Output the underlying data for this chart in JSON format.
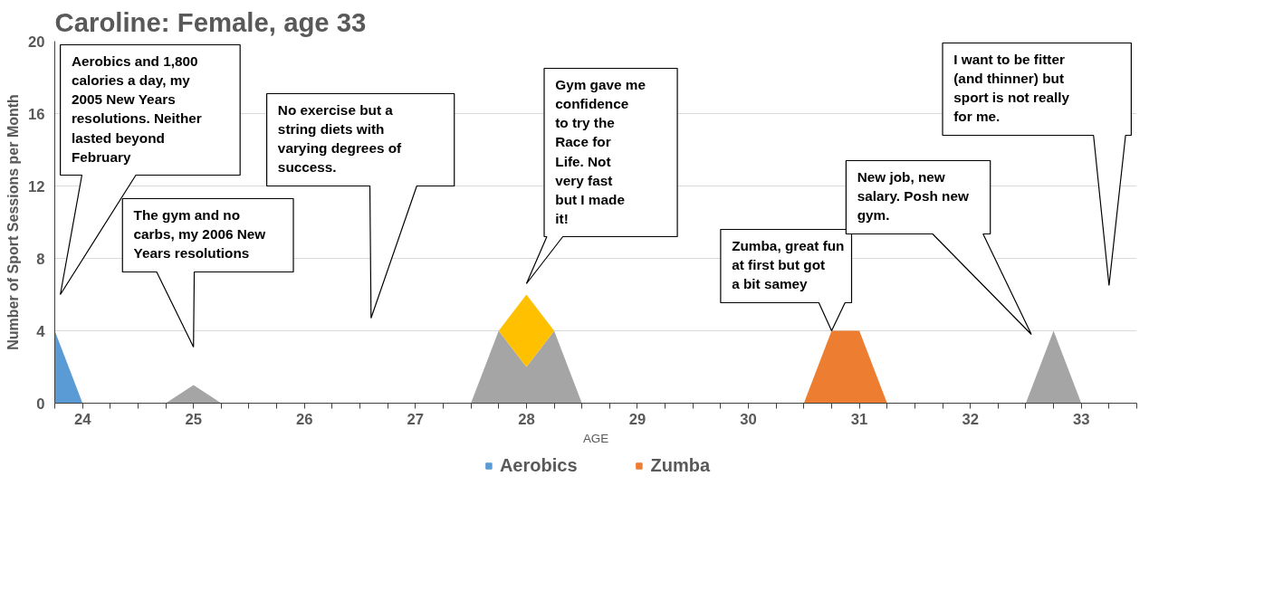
{
  "chart_data": {
    "type": "area",
    "title": "Caroline: Female, age 33",
    "xlabel": "AGE",
    "ylabel": "Number of Sport Sessions per Month",
    "grid": "y",
    "legend": "bottom",
    "xlim": [
      23.75,
      33.5
    ],
    "xticks": [
      {
        "value": 23.75,
        "label": null
      },
      24,
      {
        "value": 24.25,
        "label": null
      },
      {
        "value": 24.5,
        "label": null
      },
      {
        "value": 24.75,
        "label": null
      },
      25,
      {
        "value": 25.25,
        "label": null
      },
      {
        "value": 25.5,
        "label": null
      },
      {
        "value": 25.75,
        "label": null
      },
      26,
      {
        "value": 26.25,
        "label": null
      },
      {
        "value": 26.5,
        "label": null
      },
      {
        "value": 26.75,
        "label": null
      },
      27,
      {
        "value": 27.25,
        "label": null
      },
      {
        "value": 27.5,
        "label": null
      },
      {
        "value": 27.75,
        "label": null
      },
      28,
      {
        "value": 28.25,
        "label": null
      },
      {
        "value": 28.5,
        "label": null
      },
      {
        "value": 28.75,
        "label": null
      },
      29,
      {
        "value": 29.25,
        "label": null
      },
      {
        "value": 29.5,
        "label": null
      },
      {
        "value": 29.75,
        "label": null
      },
      30,
      {
        "value": 30.25,
        "label": null
      },
      {
        "value": 30.5,
        "label": null
      },
      {
        "value": 30.75,
        "label": null
      },
      31,
      {
        "value": 31.25,
        "label": null
      },
      {
        "value": 31.5,
        "label": null
      },
      {
        "value": 31.75,
        "label": null
      },
      32,
      {
        "value": 32.25,
        "label": null
      },
      {
        "value": 32.5,
        "label": null
      },
      {
        "value": 32.75,
        "label": null
      },
      33,
      {
        "value": 33.25,
        "label": null
      },
      {
        "value": 33.5,
        "label": null
      }
    ],
    "ylim": [
      0,
      20
    ],
    "yticks": [
      0,
      4,
      8,
      12,
      16,
      20
    ],
    "series": [
      {
        "color": "#a5a5a5",
        "x": [
          24.75,
          25,
          25.25,
          26.5,
          27.5,
          27.75,
          28,
          28.25,
          28.5,
          30.5,
          32.5,
          32.75,
          33
        ],
        "values": [
          0,
          1,
          0,
          null,
          0,
          4,
          2,
          4,
          0,
          null,
          0,
          4,
          0
        ]
      },
      {
        "color": "#ffc000",
        "x": [
          27.75,
          28,
          28.25
        ],
        "values": [
          4,
          6,
          4
        ]
      },
      {
        "name": "Aerobics",
        "color": "#5b9bd5",
        "x": [
          23.75,
          24
        ],
        "values": [
          4,
          0
        ]
      },
      {
        "name": "Zumba",
        "color": "#ed7d31",
        "x": [
          30.5,
          30.75,
          31,
          31.25
        ],
        "values": [
          0,
          4,
          4,
          0
        ]
      }
    ],
    "annotations": [
      "Aerobics and 1,800 calories a day, my 2005 New Years resolutions. Neither lasted beyond February",
      "The gym and no carbs, my 2006 New Years resolutions",
      "No exercise but a string diets with varying degrees of success.",
      "Gym gave me confidence to try the Race for Life. Not very fast but I made it!",
      {
        "text": "Zumba, great fun at first but got a bit samey",
        "x": 30.75,
        "y": 4
      },
      "New job, new salary. Posh new gym.",
      "I want to be fitter (and thinner) but sport is not really for me."
    ]
  }
}
